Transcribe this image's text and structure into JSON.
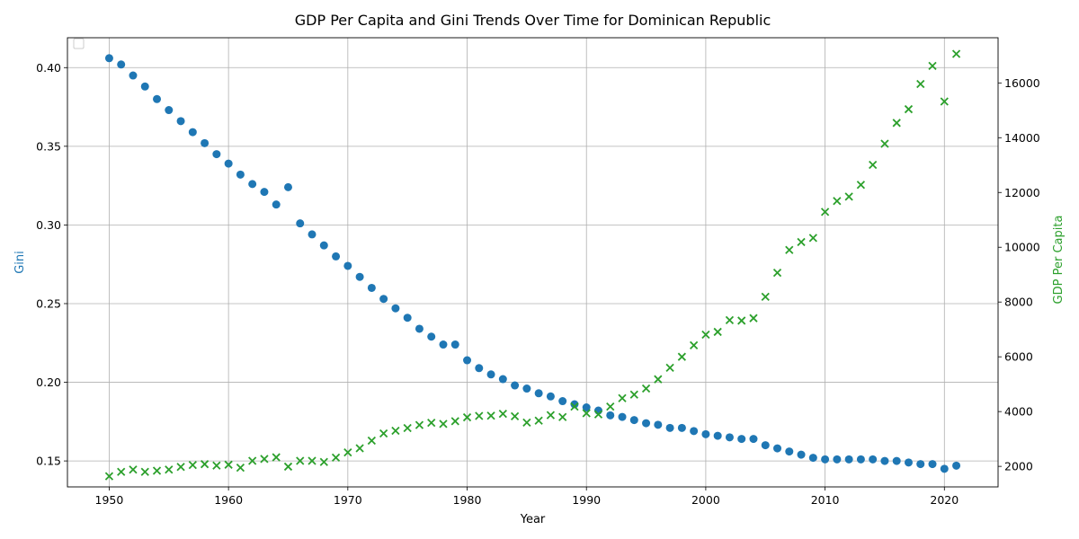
{
  "chart_data": {
    "type": "scatter",
    "title": "GDP Per Capita and Gini Trends Over Time for Dominican Republic",
    "xlabel": "Year",
    "ylabel_left": "Gini",
    "ylabel_right": "GDP Per Capita",
    "xlim": [
      1946.5,
      2024.5
    ],
    "ylim_left": [
      0.1335,
      0.419
    ],
    "ylim_right": [
      1250,
      17650
    ],
    "x_ticks": [
      1950,
      1960,
      1970,
      1980,
      1990,
      2000,
      2010,
      2020
    ],
    "y_ticks_left": [
      0.15,
      0.2,
      0.25,
      0.3,
      0.35,
      0.4
    ],
    "y_ticks_right": [
      2000,
      4000,
      6000,
      8000,
      10000,
      12000,
      14000,
      16000
    ],
    "grid": true,
    "legend": "top-left (empty)",
    "colors": {
      "gini": "#1f77b4",
      "gdp": "#2ca02c"
    },
    "years": [
      1950,
      1951,
      1952,
      1953,
      1954,
      1955,
      1956,
      1957,
      1958,
      1959,
      1960,
      1961,
      1962,
      1963,
      1964,
      1965,
      1966,
      1967,
      1968,
      1969,
      1970,
      1971,
      1972,
      1973,
      1974,
      1975,
      1976,
      1977,
      1978,
      1979,
      1980,
      1981,
      1982,
      1983,
      1984,
      1985,
      1986,
      1987,
      1988,
      1989,
      1990,
      1991,
      1992,
      1993,
      1994,
      1995,
      1996,
      1997,
      1998,
      1999,
      2000,
      2001,
      2002,
      2003,
      2004,
      2005,
      2006,
      2007,
      2008,
      2009,
      2010,
      2011,
      2012,
      2013,
      2014,
      2015,
      2016,
      2017,
      2018,
      2019,
      2020,
      2021
    ],
    "series": [
      {
        "name": "Gini",
        "axis": "left",
        "marker": "circle",
        "values": [
          0.406,
          0.402,
          0.395,
          0.388,
          0.38,
          0.373,
          0.366,
          0.359,
          0.352,
          0.345,
          0.339,
          0.332,
          0.326,
          0.321,
          0.313,
          0.324,
          0.301,
          0.294,
          0.287,
          0.28,
          0.274,
          0.267,
          0.26,
          0.253,
          0.247,
          0.241,
          0.234,
          0.229,
          0.224,
          0.224,
          0.214,
          0.209,
          0.205,
          0.202,
          0.198,
          0.196,
          0.193,
          0.191,
          0.188,
          0.186,
          0.184,
          0.182,
          0.179,
          0.178,
          0.176,
          0.174,
          0.173,
          0.171,
          0.171,
          0.169,
          0.167,
          0.166,
          0.165,
          0.164,
          0.164,
          0.16,
          0.158,
          0.156,
          0.154,
          0.152,
          0.151,
          0.151,
          0.151,
          0.151,
          0.151,
          0.15,
          0.15,
          0.149,
          0.148,
          0.148,
          0.145,
          0.147
        ]
      },
      {
        "name": "GDP Per Capita",
        "axis": "right",
        "marker": "x",
        "values": [
          1640,
          1800,
          1880,
          1800,
          1840,
          1880,
          1980,
          2050,
          2080,
          2030,
          2060,
          1950,
          2200,
          2270,
          2330,
          1990,
          2200,
          2200,
          2160,
          2320,
          2510,
          2660,
          2940,
          3200,
          3300,
          3400,
          3510,
          3590,
          3550,
          3650,
          3790,
          3840,
          3850,
          3920,
          3830,
          3600,
          3670,
          3870,
          3800,
          4180,
          3940,
          3900,
          4180,
          4490,
          4620,
          4840,
          5180,
          5600,
          6000,
          6420,
          6810,
          6910,
          7340,
          7320,
          7410,
          8190,
          9070,
          9900,
          10190,
          10340,
          11290,
          11690,
          11850,
          12280,
          13010,
          13780,
          14540,
          15040,
          15960,
          16620,
          15320,
          17060
        ]
      }
    ]
  }
}
